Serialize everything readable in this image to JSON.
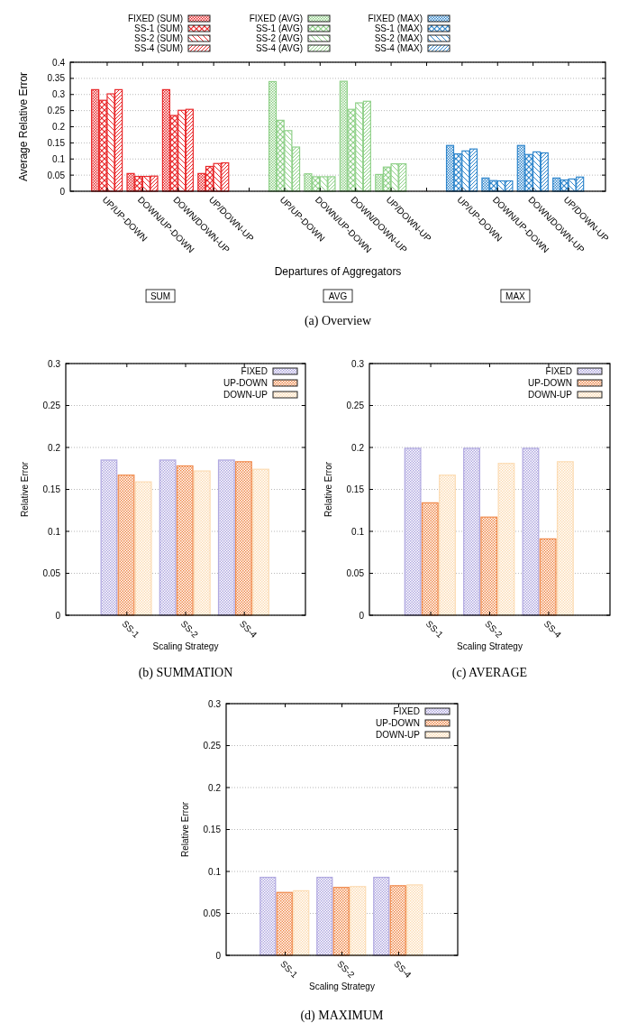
{
  "chart_data": [
    {
      "type": "bar",
      "ylabel": "Average Relative Error",
      "xlabel": "Departures of Aggregators",
      "categories": [
        "UP/UP-DOWN",
        "DOWN/UP-DOWN",
        "DOWN/DOWN-UP",
        "UP/DOWN-UP",
        null,
        "UP/UP-DOWN",
        "DOWN/UP-DOWN",
        "DOWN/DOWN-UP",
        "UP/DOWN-UP",
        null,
        "UP/UP-DOWN",
        "DOWN/UP-DOWN",
        "DOWN/DOWN-UP",
        "UP/DOWN-UP"
      ],
      "series": [
        {
          "name": "FIXED (SUM)",
          "color": "#e8282a",
          "values": [
            0.315,
            0.055,
            0.315,
            0.055,
            null,
            null,
            null,
            null,
            null,
            null,
            null,
            null,
            null,
            null
          ]
        },
        {
          "name": "SS-1 (SUM)",
          "color": "#e8282a",
          "values": [
            0.282,
            0.046,
            0.235,
            0.077,
            null,
            null,
            null,
            null,
            null,
            null,
            null,
            null,
            null,
            null
          ]
        },
        {
          "name": "SS-2 (SUM)",
          "color": "#e8282a",
          "values": [
            0.302,
            0.046,
            0.251,
            0.086,
            null,
            null,
            null,
            null,
            null,
            null,
            null,
            null,
            null,
            null
          ]
        },
        {
          "name": "SS-4 (SUM)",
          "color": "#e8282a",
          "values": [
            0.315,
            0.047,
            0.254,
            0.088,
            null,
            null,
            null,
            null,
            null,
            null,
            null,
            null,
            null,
            null
          ]
        },
        {
          "name": "FIXED (AVG)",
          "color": "#8fd088",
          "values": [
            null,
            null,
            null,
            null,
            null,
            0.34,
            0.054,
            0.341,
            0.052,
            null,
            null,
            null,
            null,
            null
          ]
        },
        {
          "name": "SS-1 (AVG)",
          "color": "#8fd088",
          "values": [
            null,
            null,
            null,
            null,
            null,
            0.22,
            0.045,
            0.254,
            0.075,
            null,
            null,
            null,
            null,
            null
          ]
        },
        {
          "name": "SS-2 (AVG)",
          "color": "#8fd088",
          "values": [
            null,
            null,
            null,
            null,
            null,
            0.188,
            0.045,
            0.274,
            0.085,
            null,
            null,
            null,
            null,
            null
          ]
        },
        {
          "name": "SS-4 (AVG)",
          "color": "#8fd088",
          "values": [
            null,
            null,
            null,
            null,
            null,
            0.137,
            0.045,
            0.279,
            0.085,
            null,
            null,
            null,
            null,
            null
          ]
        },
        {
          "name": "FIXED (MAX)",
          "color": "#2f86cc",
          "values": [
            null,
            null,
            null,
            null,
            null,
            null,
            null,
            null,
            null,
            null,
            0.142,
            0.041,
            0.142,
            0.041
          ]
        },
        {
          "name": "SS-1 (MAX)",
          "color": "#2f86cc",
          "values": [
            null,
            null,
            null,
            null,
            null,
            null,
            null,
            null,
            null,
            null,
            0.116,
            0.033,
            0.114,
            0.035
          ]
        },
        {
          "name": "SS-2 (MAX)",
          "color": "#2f86cc",
          "values": [
            null,
            null,
            null,
            null,
            null,
            null,
            null,
            null,
            null,
            null,
            0.125,
            0.032,
            0.122,
            0.038
          ]
        },
        {
          "name": "SS-4 (MAX)",
          "color": "#2f86cc",
          "values": [
            null,
            null,
            null,
            null,
            null,
            null,
            null,
            null,
            null,
            null,
            0.131,
            0.032,
            0.119,
            0.044
          ]
        }
      ],
      "ylim": [
        0,
        0.4
      ],
      "yticks": [
        0,
        0.05,
        0.1,
        0.15,
        0.2,
        0.25,
        0.3,
        0.35,
        0.4
      ],
      "grid": "y",
      "legend": "top",
      "annotations": [
        "SUM",
        "AVG",
        "MAX",
        "(a)  Overview"
      ]
    },
    {
      "type": "bar",
      "ylabel": "Relative Error",
      "xlabel": "Scaling Strategy",
      "categories": [
        "SS-1",
        "SS-2",
        "SS-4"
      ],
      "series": [
        {
          "name": "FIXED",
          "color": "#b0a8e0",
          "values": [
            0.185,
            0.185,
            0.185
          ]
        },
        {
          "name": "UP-DOWN",
          "color": "#f08a4c",
          "values": [
            0.167,
            0.178,
            0.183
          ]
        },
        {
          "name": "DOWN-UP",
          "color": "#fcdcb4",
          "values": [
            0.159,
            0.172,
            0.174
          ]
        }
      ],
      "ylim": [
        0,
        0.3
      ],
      "yticks": [
        0,
        0.05,
        0.1,
        0.15,
        0.2,
        0.25,
        0.3
      ],
      "grid": "y",
      "legend": "top right",
      "annotations": [
        "(b)  SUMMATION"
      ]
    },
    {
      "type": "bar",
      "ylabel": "Relative Error",
      "xlabel": "Scaling Strategy",
      "categories": [
        "SS-1",
        "SS-2",
        "SS-4"
      ],
      "series": [
        {
          "name": "FIXED",
          "color": "#b0a8e0",
          "values": [
            0.199,
            0.199,
            0.199
          ]
        },
        {
          "name": "UP-DOWN",
          "color": "#f08a4c",
          "values": [
            0.134,
            0.117,
            0.091
          ]
        },
        {
          "name": "DOWN-UP",
          "color": "#fcdcb4",
          "values": [
            0.167,
            0.181,
            0.183
          ]
        }
      ],
      "ylim": [
        0,
        0.3
      ],
      "yticks": [
        0,
        0.05,
        0.1,
        0.15,
        0.2,
        0.25,
        0.3
      ],
      "grid": "y",
      "legend": "top right",
      "annotations": [
        "(c)  AVERAGE"
      ]
    },
    {
      "type": "bar",
      "ylabel": "Relative Error",
      "xlabel": "Scaling Strategy",
      "categories": [
        "SS-1",
        "SS-2",
        "SS-4"
      ],
      "series": [
        {
          "name": "FIXED",
          "color": "#b0a8e0",
          "values": [
            0.093,
            0.093,
            0.093
          ]
        },
        {
          "name": "UP-DOWN",
          "color": "#f08a4c",
          "values": [
            0.075,
            0.081,
            0.083
          ]
        },
        {
          "name": "DOWN-UP",
          "color": "#fcdcb4",
          "values": [
            0.077,
            0.082,
            0.084
          ]
        }
      ],
      "ylim": [
        0,
        0.3
      ],
      "yticks": [
        0,
        0.05,
        0.1,
        0.15,
        0.2,
        0.25,
        0.3
      ],
      "grid": "y",
      "legend": "top right",
      "annotations": [
        "(d)  MAXIMUM"
      ]
    }
  ]
}
